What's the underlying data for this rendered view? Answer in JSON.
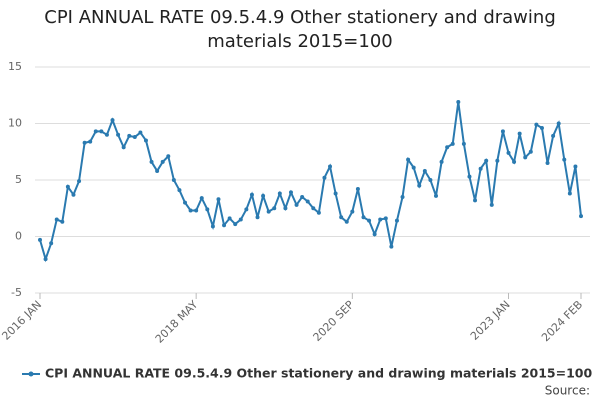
{
  "chart_data": {
    "type": "line",
    "title": "CPI ANNUAL RATE 09.5.4.9 Other stationery and drawing materials 2015=100",
    "categories": [
      "2016 JAN",
      null,
      null,
      null,
      null,
      null,
      null,
      null,
      null,
      null,
      null,
      null,
      null,
      null,
      null,
      null,
      null,
      null,
      null,
      null,
      null,
      null,
      null,
      null,
      null,
      null,
      null,
      null,
      "2018 MAY",
      null,
      null,
      null,
      null,
      null,
      null,
      null,
      null,
      null,
      null,
      null,
      null,
      null,
      null,
      null,
      null,
      null,
      null,
      null,
      null,
      null,
      null,
      null,
      null,
      null,
      null,
      null,
      "2020 SEP",
      null,
      null,
      null,
      null,
      null,
      null,
      null,
      null,
      null,
      null,
      null,
      null,
      null,
      null,
      null,
      null,
      null,
      null,
      null,
      null,
      null,
      null,
      null,
      null,
      null,
      null,
      null,
      "2023 JAN",
      null,
      null,
      null,
      null,
      null,
      null,
      null,
      null,
      null,
      null,
      null,
      null,
      "2024 FEB"
    ],
    "series": [
      {
        "name": "CPI ANNUAL RATE 09.5.4.9 Other stationery and drawing materials 2015=100",
        "color": "#2a7ab0",
        "values": [
          -0.3,
          -2.0,
          -0.6,
          1.5,
          1.3,
          4.4,
          3.7,
          4.9,
          8.3,
          8.4,
          9.3,
          9.3,
          9.0,
          10.3,
          9.0,
          7.9,
          8.9,
          8.8,
          9.2,
          8.5,
          6.6,
          5.8,
          6.6,
          7.1,
          5.0,
          4.1,
          3.0,
          2.3,
          2.3,
          3.4,
          2.4,
          0.9,
          3.3,
          1.0,
          1.6,
          1.1,
          1.5,
          2.4,
          3.7,
          1.7,
          3.6,
          2.2,
          2.5,
          3.8,
          2.5,
          3.9,
          2.8,
          3.5,
          3.1,
          2.5,
          2.1,
          5.2,
          6.2,
          3.8,
          1.7,
          1.3,
          2.2,
          4.2,
          1.7,
          1.4,
          0.2,
          1.5,
          1.6,
          -0.9,
          1.4,
          3.5,
          6.8,
          6.1,
          4.5,
          5.8,
          5.0,
          3.6,
          6.6,
          7.9,
          8.2,
          11.9,
          8.2,
          5.3,
          3.2,
          6.0,
          6.7,
          2.8,
          6.7,
          9.3,
          7.4,
          6.6,
          9.1,
          7.0,
          7.5,
          9.9,
          9.6,
          6.5,
          8.9,
          10.0,
          6.8,
          3.8,
          6.2,
          1.8
        ]
      }
    ],
    "ylim": [
      -5,
      15
    ],
    "yticks": [
      -5,
      0,
      5,
      10,
      15
    ],
    "grid": true,
    "source": "Source:"
  }
}
